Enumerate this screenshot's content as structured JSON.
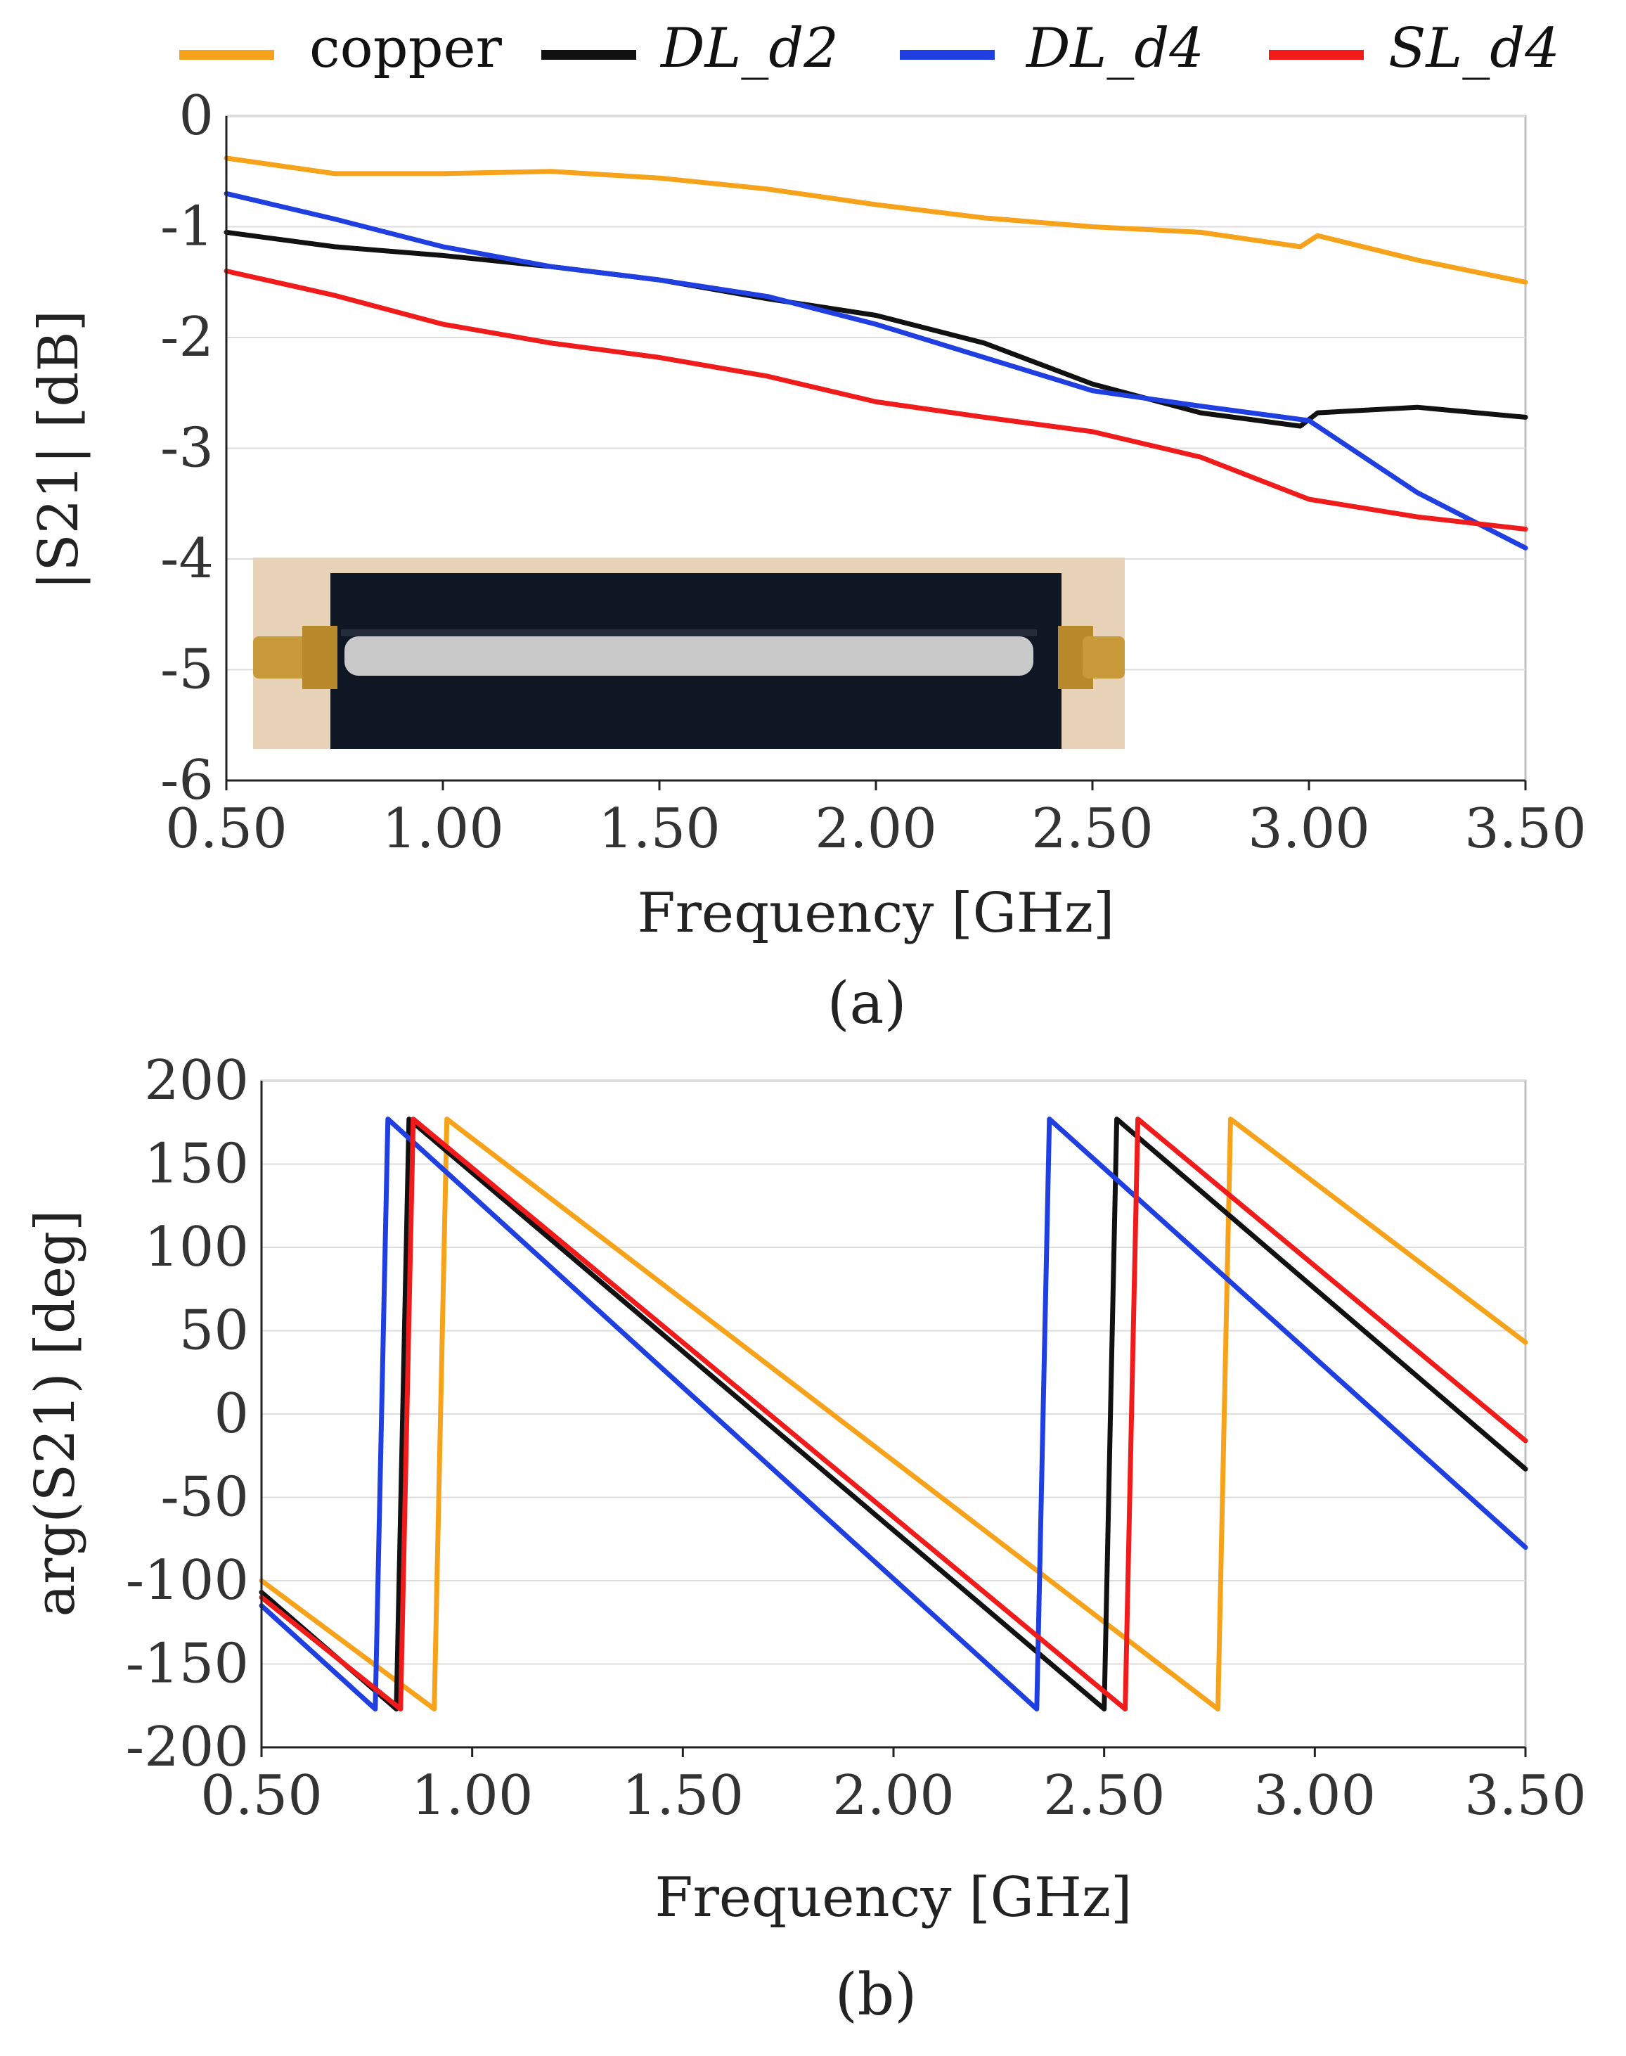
{
  "legend": [
    {
      "label": "copper",
      "color": "#F7A21B",
      "italic": false
    },
    {
      "label": "DL_d2",
      "color": "#111111",
      "italic": true
    },
    {
      "label": "DL_d4",
      "color": "#1F3FE0",
      "italic": true
    },
    {
      "label": "SL_d4",
      "color": "#F01C1C",
      "italic": true
    }
  ],
  "chart_data": [
    {
      "type": "line",
      "panel_label": "(a)",
      "xlabel": "Frequency [GHz]",
      "ylabel": "|S21| [dB]",
      "xlim": [
        0.5,
        3.5
      ],
      "ylim": [
        -6,
        0
      ],
      "xticks": [
        "0.50",
        "1.00",
        "1.50",
        "2.00",
        "2.50",
        "3.00",
        "3.50"
      ],
      "yticks": [
        "0",
        "-1",
        "-2",
        "-3",
        "-4",
        "-5",
        "-6"
      ],
      "inset_photo": "textile transmission line with SMA connectors",
      "series": [
        {
          "name": "copper",
          "color": "#F7A21B",
          "x": [
            0.5,
            0.75,
            1.0,
            1.25,
            1.5,
            1.75,
            2.0,
            2.25,
            2.5,
            2.75,
            2.98,
            3.02,
            3.25,
            3.5
          ],
          "y": [
            -0.38,
            -0.52,
            -0.52,
            -0.5,
            -0.56,
            -0.66,
            -0.8,
            -0.92,
            -1.0,
            -1.05,
            -1.18,
            -1.08,
            -1.3,
            -1.5
          ]
        },
        {
          "name": "DL_d2",
          "color": "#111111",
          "x": [
            0.5,
            0.75,
            1.0,
            1.25,
            1.5,
            1.75,
            2.0,
            2.25,
            2.5,
            2.75,
            2.98,
            3.02,
            3.25,
            3.5
          ],
          "y": [
            -1.05,
            -1.18,
            -1.26,
            -1.36,
            -1.48,
            -1.65,
            -1.8,
            -2.05,
            -2.42,
            -2.68,
            -2.8,
            -2.68,
            -2.63,
            -2.72
          ]
        },
        {
          "name": "DL_d4",
          "color": "#1F3FE0",
          "x": [
            0.5,
            0.75,
            1.0,
            1.25,
            1.5,
            1.75,
            2.0,
            2.25,
            2.5,
            2.75,
            3.0,
            3.25,
            3.5
          ],
          "y": [
            -0.7,
            -0.93,
            -1.18,
            -1.36,
            -1.48,
            -1.63,
            -1.88,
            -2.18,
            -2.48,
            -2.62,
            -2.75,
            -3.4,
            -3.9
          ]
        },
        {
          "name": "SL_d4",
          "color": "#F01C1C",
          "x": [
            0.5,
            0.75,
            1.0,
            1.25,
            1.5,
            1.75,
            2.0,
            2.25,
            2.5,
            2.75,
            3.0,
            3.25,
            3.5
          ],
          "y": [
            -1.4,
            -1.62,
            -1.88,
            -2.05,
            -2.18,
            -2.35,
            -2.58,
            -2.72,
            -2.85,
            -3.08,
            -3.46,
            -3.62,
            -3.73
          ]
        }
      ]
    },
    {
      "type": "line",
      "panel_label": "(b)",
      "xlabel": "Frequency [GHz]",
      "ylabel": "arg(S21) [deg]",
      "xlim": [
        0.5,
        3.5
      ],
      "ylim": [
        -200,
        200
      ],
      "xticks": [
        "0.50",
        "1.00",
        "1.50",
        "2.00",
        "2.50",
        "3.00",
        "3.50"
      ],
      "yticks": [
        "200",
        "150",
        "100",
        "50",
        "0",
        "-50",
        "-100",
        "-150",
        "-200"
      ],
      "series": [
        {
          "name": "copper",
          "color": "#F7A21B",
          "x": [
            0.5,
            0.91,
            0.94,
            2.77,
            2.8,
            3.5
          ],
          "y": [
            -100,
            -177,
            177,
            -177,
            177,
            43
          ]
        },
        {
          "name": "DL_d2",
          "color": "#111111",
          "x": [
            0.5,
            0.82,
            0.85,
            2.5,
            2.53,
            3.5
          ],
          "y": [
            -107,
            -177,
            177,
            -177,
            177,
            -33
          ]
        },
        {
          "name": "DL_d4",
          "color": "#1F3FE0",
          "x": [
            0.5,
            0.77,
            0.8,
            2.34,
            2.37,
            3.5
          ],
          "y": [
            -115,
            -177,
            177,
            -177,
            177,
            -80
          ]
        },
        {
          "name": "SL_d4",
          "color": "#F01C1C",
          "x": [
            0.5,
            0.83,
            0.86,
            2.55,
            2.58,
            3.5
          ],
          "y": [
            -110,
            -177,
            177,
            -177,
            177,
            -16
          ]
        }
      ]
    }
  ]
}
